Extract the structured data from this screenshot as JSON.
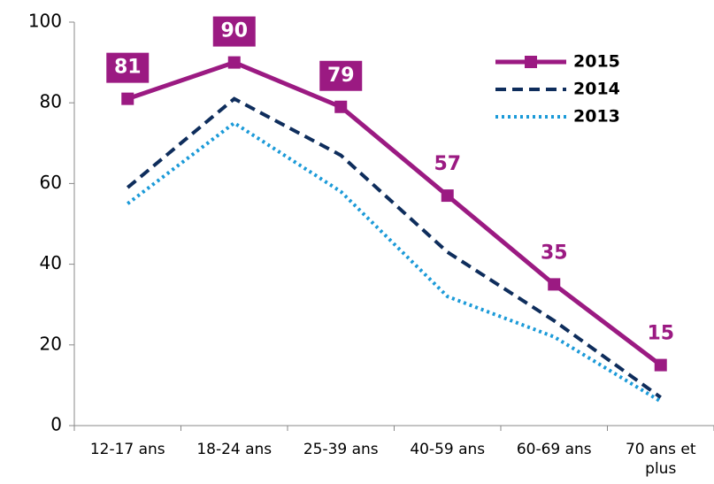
{
  "chart_data": {
    "type": "line",
    "categories": [
      "12-17 ans",
      "18-24 ans",
      "25-39 ans",
      "40-59 ans",
      "60-69 ans",
      "70 ans et plus"
    ],
    "series": [
      {
        "name": "2015",
        "color": "#9b1a82",
        "style": "solid",
        "marker": "square",
        "values": [
          81,
          90,
          79,
          57,
          35,
          15
        ]
      },
      {
        "name": "2014",
        "color": "#0e2d5c",
        "style": "dashed",
        "values": [
          59,
          81,
          67,
          43,
          26,
          7
        ]
      },
      {
        "name": "2013",
        "color": "#1b9ad8",
        "style": "dotted",
        "values": [
          55,
          75,
          58,
          32,
          22,
          6
        ]
      }
    ],
    "ylim": [
      0,
      100
    ],
    "yticks": [
      0,
      20,
      40,
      60,
      80,
      100
    ],
    "grid": false,
    "legend": "upper right"
  }
}
